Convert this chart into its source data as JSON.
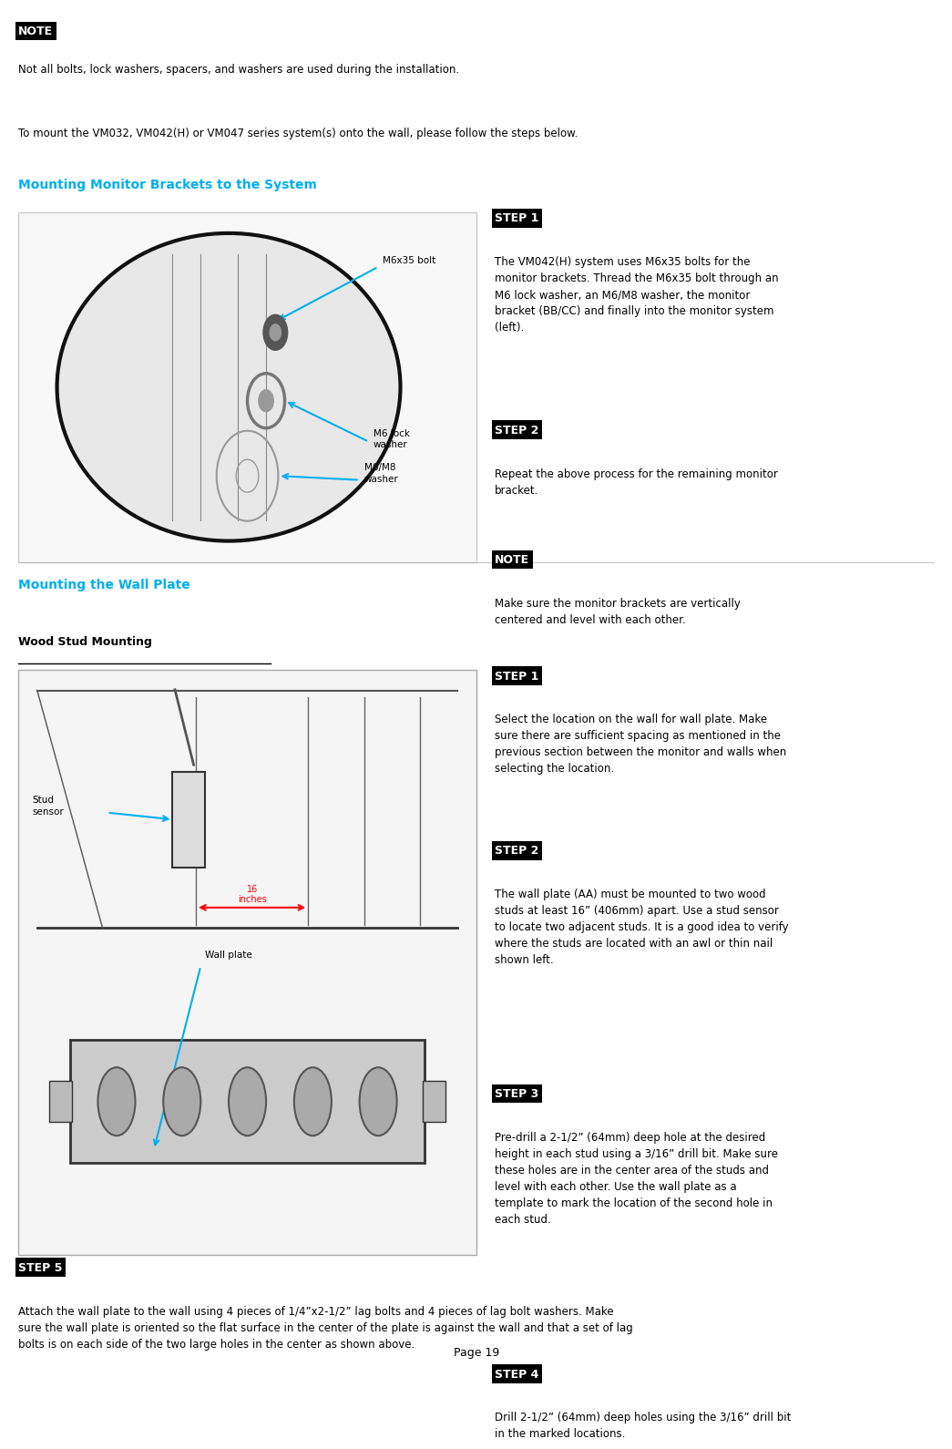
{
  "bg_color": "#ffffff",
  "page_number": "Page 19",
  "note_box_color": "#000000",
  "note_text_color": "#ffffff",
  "step_box_color": "#000000",
  "step_text_color": "#ffffff",
  "cyan_color": "#00AEEF",
  "red_color": "#FF0000",
  "body_text_color": "#000000",
  "note_label": "NOTE",
  "note_body": "Not all bolts, lock washers, spacers, and washers are used during the installation.",
  "intro_text": "To mount the VM032, VM042(H) or VM047 series system(s) onto the wall, please follow the steps below.",
  "section1_title": "Mounting Monitor Brackets to the System",
  "section1_step1_label": "STEP 1",
  "section1_step1_text": "The VM042(H) system uses M6x35 bolts for the\nmonitor brackets. Thread the M6x35 bolt through an\nM6 lock washer, an M6/M8 washer, the monitor\nbracket (BB/CC) and finally into the monitor system\n(left).",
  "section1_step2_label": "STEP 2",
  "section1_step2_text": "Repeat the above process for the remaining monitor\nbracket.",
  "section1_note_label": "NOTE",
  "section1_note_text": "Make sure the monitor brackets are vertically\ncentered and level with each other.",
  "section2_title": "Mounting the Wall Plate",
  "section2_subtitle": "Wood Stud Mounting",
  "section2_step1_label": "STEP 1",
  "section2_step1_text": "Select the location on the wall for wall plate. Make\nsure there are sufficient spacing as mentioned in the\nprevious section between the monitor and walls when\nselecting the location.",
  "section2_step2_label": "STEP 2",
  "section2_step2_text": "The wall plate (AA) must be mounted to two wood\nstuds at least 16” (406mm) apart. Use a stud sensor\nto locate two adjacent studs. It is a good idea to verify\nwhere the studs are located with an awl or thin nail\nshown left.",
  "section2_step3_label": "STEP 3",
  "section2_step3_text": "Pre-drill a 2-1/2” (64mm) deep hole at the desired\nheight in each stud using a 3/16” drill bit. Make sure\nthese holes are in the center area of the studs and\nlevel with each other. Use the wall plate as a\ntemplate to mark the location of the second hole in\neach stud.",
  "section2_step4_label": "STEP 4",
  "section2_step4_text": "Drill 2-1/2” (64mm) deep holes using the 3/16” drill bit\nin the marked locations.",
  "section2_step5_label": "STEP 5",
  "section2_step5_text": "Attach the wall plate to the wall using 4 pieces of 1/4”x2-1/2” lag bolts and 4 pieces of lag bolt washers. Make\nsure the wall plate is oriented so the flat surface in the center of the plate is against the wall and that a set of lag\nbolts is on each side of the two large holes in the center as shown above.",
  "label_m6x35": "M6x35 bolt",
  "label_m6lock": "M6 lock\nwasher",
  "label_m6m8": "M6/M8\nwasher",
  "label_stud_sensor": "Stud\nsensor",
  "label_16inches": "16\ninches",
  "label_wall_plate": "Wall plate"
}
